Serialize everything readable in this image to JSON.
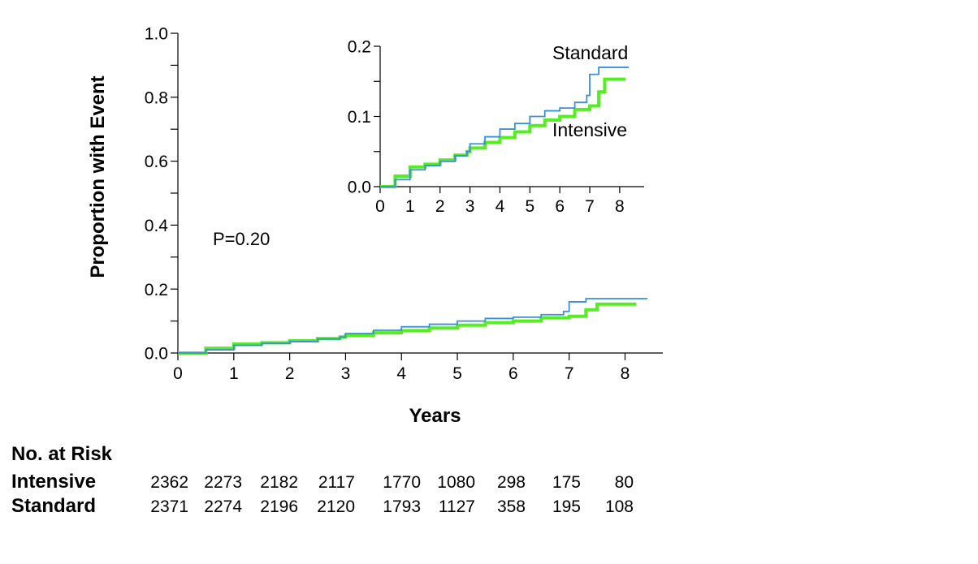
{
  "chart_data": [
    {
      "type": "line",
      "xlabel": "Years",
      "ylabel": "Proportion with Event",
      "xlim": [
        0,
        8.4
      ],
      "ylim": [
        0,
        1.0
      ],
      "xticks": [
        "0",
        "1",
        "2",
        "3",
        "4",
        "5",
        "6",
        "7",
        "8"
      ],
      "yticks": [
        "0.0",
        "0.2",
        "0.4",
        "0.6",
        "0.8",
        "1.0"
      ],
      "annotation": "P=0.20",
      "series": [
        {
          "name": "Standard",
          "color": "#3a8fd8",
          "x": [
            0,
            0.5,
            1.0,
            1.5,
            2.0,
            2.5,
            2.9,
            3.0,
            3.5,
            4.0,
            4.5,
            5.0,
            5.5,
            6.0,
            6.5,
            6.9,
            7.0,
            7.3,
            8.4
          ],
          "y": [
            0,
            0.01,
            0.024,
            0.03,
            0.036,
            0.044,
            0.05,
            0.061,
            0.071,
            0.082,
            0.09,
            0.1,
            0.108,
            0.112,
            0.12,
            0.13,
            0.16,
            0.17,
            0.17
          ]
        },
        {
          "name": "Intensive",
          "color": "#55ee22",
          "x": [
            0,
            0.5,
            1.0,
            1.5,
            2.0,
            2.5,
            2.9,
            3.0,
            3.5,
            4.0,
            4.5,
            5.0,
            5.5,
            6.0,
            6.5,
            7.0,
            7.3,
            7.5,
            8.2
          ],
          "y": [
            0,
            0.015,
            0.028,
            0.032,
            0.038,
            0.045,
            0.05,
            0.055,
            0.063,
            0.07,
            0.078,
            0.087,
            0.095,
            0.1,
            0.11,
            0.115,
            0.135,
            0.153,
            0.153
          ]
        }
      ]
    },
    {
      "type": "line",
      "xlim": [
        0,
        8.6
      ],
      "ylim": [
        0,
        0.2
      ],
      "xticks": [
        "0",
        "1",
        "2",
        "3",
        "4",
        "5",
        "6",
        "7",
        "8"
      ],
      "yticks": [
        "0.0",
        "0.1",
        "0.2"
      ],
      "series": [
        {
          "name": "Standard",
          "color": "#3a8fd8",
          "x": [
            0,
            0.5,
            1.0,
            1.5,
            2.0,
            2.5,
            2.9,
            3.0,
            3.5,
            4.0,
            4.5,
            5.0,
            5.5,
            6.0,
            6.5,
            6.9,
            7.0,
            7.3,
            8.3
          ],
          "y": [
            0,
            0.01,
            0.024,
            0.03,
            0.036,
            0.044,
            0.05,
            0.061,
            0.071,
            0.082,
            0.09,
            0.1,
            0.108,
            0.112,
            0.12,
            0.13,
            0.16,
            0.17,
            0.17
          ]
        },
        {
          "name": "Intensive",
          "color": "#55ee22",
          "x": [
            0,
            0.5,
            1.0,
            1.5,
            2.0,
            2.5,
            2.9,
            3.0,
            3.5,
            4.0,
            4.5,
            5.0,
            5.5,
            6.0,
            6.5,
            7.0,
            7.3,
            7.5,
            8.2
          ],
          "y": [
            0,
            0.015,
            0.028,
            0.032,
            0.038,
            0.045,
            0.05,
            0.055,
            0.063,
            0.07,
            0.078,
            0.087,
            0.095,
            0.1,
            0.11,
            0.115,
            0.135,
            0.153,
            0.153
          ]
        }
      ]
    }
  ],
  "risk_table": {
    "title": "No. at Risk",
    "rows": [
      {
        "label": "Intensive",
        "values": [
          "2362",
          "2273",
          "2182",
          "2117",
          "1770",
          "1080",
          "298",
          "175",
          "80"
        ]
      },
      {
        "label": "Standard",
        "values": [
          "2371",
          "2274",
          "2196",
          "2120",
          "1793",
          "1127",
          "358",
          "195",
          "108"
        ]
      }
    ]
  }
}
